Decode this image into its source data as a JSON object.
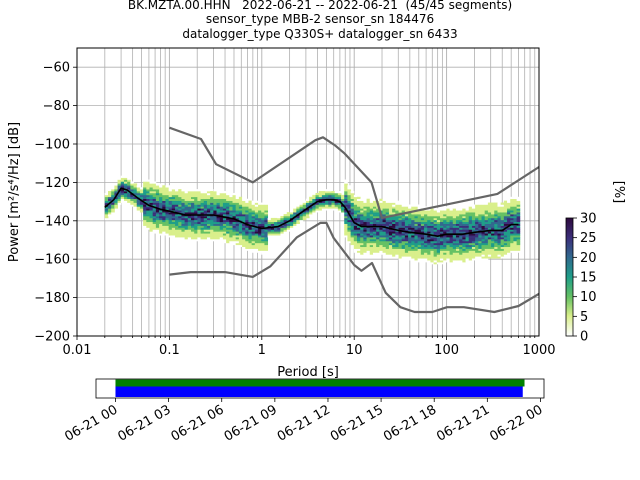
{
  "title_lines": [
    "BK.MZTA.00.HHN   2022-06-21 -- 2022-06-21  (45/45 segments)",
    "sensor_type MBB-2 sensor_sn 184476",
    "datalogger_type Q330S+ datalogger_sn 6433"
  ],
  "chart_data": [
    {
      "type": "heatmap",
      "xlabel": "Period [s]",
      "ylabel": "Power [m²/s⁴/Hz] [dB]",
      "xscale": "log",
      "xlim": [
        0.01,
        1000
      ],
      "ylim": [
        -200,
        -50
      ],
      "x_ticks": [
        0.01,
        0.1,
        1,
        10,
        100,
        1000
      ],
      "x_tick_labels": [
        "0.01",
        "0.1",
        "1",
        "10",
        "100",
        "1000"
      ],
      "y_ticks": [
        -200,
        -180,
        -160,
        -140,
        -120,
        -100,
        -80,
        -60
      ],
      "grid": true,
      "colorbar": {
        "label": "[%]",
        "range": [
          0,
          30
        ],
        "ticks": [
          0,
          5,
          10,
          15,
          20,
          25,
          30
        ],
        "colors": [
          "#ffffff",
          "#d9ef8b",
          "#66c164",
          "#1f9e89",
          "#31688e",
          "#3b2f7a",
          "#2d0a3e"
        ]
      },
      "series": [
        {
          "name": "",
          "role": "mean",
          "color": "#000000",
          "x": [
            0.02,
            0.025,
            0.03,
            0.035,
            0.045,
            0.06,
            0.08,
            0.1,
            0.15,
            0.2,
            0.3,
            0.5,
            0.7,
            1,
            1.5,
            2,
            3,
            4,
            5,
            6,
            7,
            8,
            10,
            12,
            15,
            20,
            30,
            40,
            60,
            80,
            100,
            150,
            200,
            300,
            400,
            500,
            600
          ],
          "y": [
            -133,
            -129,
            -123,
            -124,
            -128,
            -132,
            -134,
            -135,
            -137,
            -137,
            -137,
            -139,
            -142,
            -144,
            -143,
            -140,
            -134,
            -130,
            -129,
            -129,
            -130,
            -133,
            -141,
            -143,
            -143,
            -143,
            -145,
            -146,
            -147,
            -148,
            -147,
            -147,
            -146,
            -145,
            -145,
            -142,
            -142
          ]
        },
        {
          "name": "",
          "role": "high noise model",
          "color": "#666666",
          "x": [
            0.1,
            0.22,
            0.32,
            0.8,
            3.8,
            4.6,
            6.3,
            7.9,
            15.4,
            20,
            354.8,
            1000
          ],
          "y": [
            -91.5,
            -97.4,
            -110.5,
            -120,
            -98,
            -96.5,
            -101,
            -105,
            -120,
            -138.5,
            -126,
            -112
          ]
        },
        {
          "name": "",
          "role": "low noise model",
          "color": "#666666",
          "x": [
            0.1,
            0.17,
            0.4,
            0.8,
            1.24,
            2.4,
            4.3,
            5,
            6,
            10,
            12,
            15.6,
            21.9,
            31.6,
            45,
            70,
            101,
            154,
            328,
            600,
            1000
          ],
          "y": [
            -168,
            -166.7,
            -166.7,
            -169.2,
            -163.7,
            -148.6,
            -141.1,
            -141.1,
            -149,
            -163,
            -166,
            -162,
            -177.5,
            -185,
            -187.5,
            -187.5,
            -185,
            -185,
            -187.5,
            -184.4,
            -178
          ]
        }
      ]
    },
    {
      "type": "bar",
      "x_tick_labels": [
        "06-21 00",
        "06-21 03",
        "06-21 06",
        "06-21 09",
        "06-21 12",
        "06-21 15",
        "06-21 18",
        "06-21 21",
        "06-22 00"
      ],
      "x_ticks_hours": [
        0,
        3,
        6,
        9,
        12,
        15,
        18,
        21,
        24
      ],
      "xlim_hours": [
        -1.1,
        24.2
      ],
      "series": [
        {
          "name": "",
          "color": "#008000",
          "start_hours": 0,
          "end_hours": 23.1
        },
        {
          "name": "",
          "color": "#0000ff",
          "start_hours": 0,
          "end_hours": 23
        }
      ]
    }
  ]
}
